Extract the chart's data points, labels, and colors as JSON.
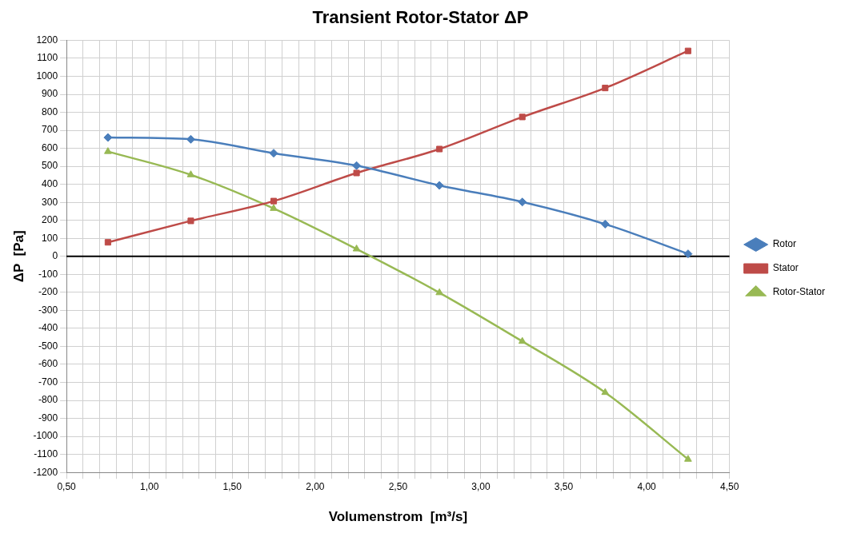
{
  "chart_data": {
    "type": "line",
    "title": "Transient Rotor-Stator ΔP",
    "xlabel": "Volumenstrom  [m³/s]",
    "ylabel": "ΔP  [Pa]",
    "x": [
      0.75,
      1.25,
      1.75,
      2.25,
      2.75,
      3.25,
      3.75,
      4.25
    ],
    "series": [
      {
        "name": "Rotor",
        "color": "#4a7ebb",
        "marker": "diamond",
        "values": [
          660,
          650,
          573,
          504,
          394,
          302,
          179,
          14
        ]
      },
      {
        "name": "Stator",
        "color": "#be4b48",
        "marker": "square",
        "values": [
          78,
          197,
          307,
          463,
          596,
          774,
          935,
          1141
        ]
      },
      {
        "name": "Rotor-Stator",
        "color": "#98b954",
        "marker": "triangle",
        "values": [
          582,
          453,
          266,
          41,
          -202,
          -472,
          -756,
          -1127
        ]
      }
    ],
    "xlim": [
      0.5,
      4.5
    ],
    "xticks": [
      {
        "value": 0.5,
        "label": "0,50"
      },
      {
        "value": 0.6,
        "label": null
      },
      {
        "value": 0.7,
        "label": null
      },
      {
        "value": 0.8,
        "label": null
      },
      {
        "value": 0.9,
        "label": null
      },
      {
        "value": 1.0,
        "label": "1,00"
      },
      {
        "value": 1.1,
        "label": null
      },
      {
        "value": 1.2,
        "label": null
      },
      {
        "value": 1.3,
        "label": null
      },
      {
        "value": 1.4,
        "label": null
      },
      {
        "value": 1.5,
        "label": "1,50"
      },
      {
        "value": 1.6,
        "label": null
      },
      {
        "value": 1.7,
        "label": null
      },
      {
        "value": 1.8,
        "label": null
      },
      {
        "value": 1.9,
        "label": null
      },
      {
        "value": 2.0,
        "label": "2,00"
      },
      {
        "value": 2.1,
        "label": null
      },
      {
        "value": 2.2,
        "label": null
      },
      {
        "value": 2.3,
        "label": null
      },
      {
        "value": 2.4,
        "label": null
      },
      {
        "value": 2.5,
        "label": "2,50"
      },
      {
        "value": 2.6,
        "label": null
      },
      {
        "value": 2.7,
        "label": null
      },
      {
        "value": 2.8,
        "label": null
      },
      {
        "value": 2.9,
        "label": null
      },
      {
        "value": 3.0,
        "label": "3,00"
      },
      {
        "value": 3.1,
        "label": null
      },
      {
        "value": 3.2,
        "label": null
      },
      {
        "value": 3.3,
        "label": null
      },
      {
        "value": 3.4,
        "label": null
      },
      {
        "value": 3.5,
        "label": "3,50"
      },
      {
        "value": 3.6,
        "label": null
      },
      {
        "value": 3.7,
        "label": null
      },
      {
        "value": 3.8,
        "label": null
      },
      {
        "value": 3.9,
        "label": null
      },
      {
        "value": 4.0,
        "label": "4,00"
      },
      {
        "value": 4.1,
        "label": null
      },
      {
        "value": 4.2,
        "label": null
      },
      {
        "value": 4.3,
        "label": null
      },
      {
        "value": 4.4,
        "label": null
      },
      {
        "value": 4.5,
        "label": "4,50"
      }
    ],
    "ylim": [
      -1200,
      1200
    ],
    "yticks": [
      -1200,
      -1100,
      -1000,
      -900,
      -800,
      -700,
      -600,
      -500,
      -400,
      -300,
      -200,
      -100,
      0,
      100,
      200,
      300,
      400,
      500,
      600,
      700,
      800,
      900,
      1000,
      1100,
      1200
    ],
    "ref_lines": [
      {
        "axis": "y",
        "value": 0,
        "color": "#000000"
      }
    ],
    "grid": true,
    "legend": "right",
    "line_style": "solid"
  }
}
